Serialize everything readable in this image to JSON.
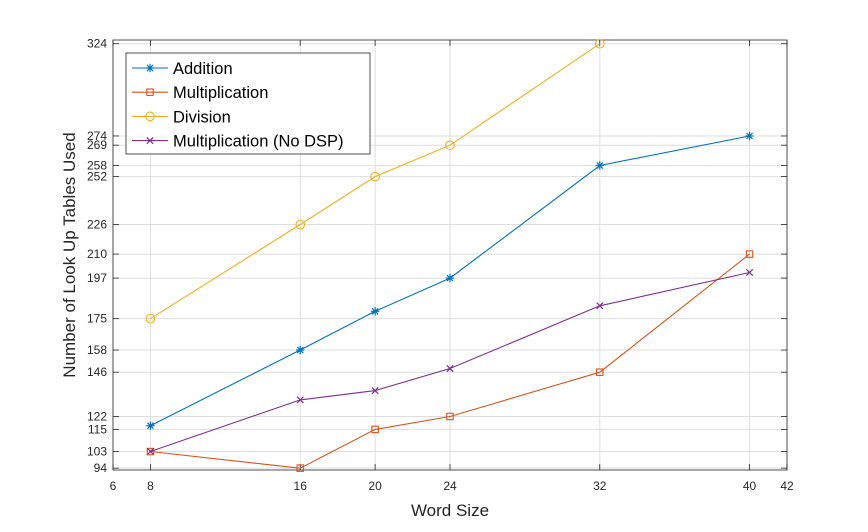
{
  "chart_data": {
    "type": "line",
    "xlabel": "Word Size",
    "ylabel": "Number of Look Up Tables Used",
    "xlim": [
      6,
      42
    ],
    "ylim": [
      93,
      326
    ],
    "x_ticks": [
      6,
      8,
      16,
      20,
      24,
      32,
      40,
      42
    ],
    "y_ticks": [
      94,
      103,
      115,
      122,
      146,
      158,
      175,
      197,
      210,
      226,
      252,
      258,
      269,
      274,
      324
    ],
    "grid": true,
    "legend_position": "top-left",
    "series": [
      {
        "name": "Addition",
        "color": "#0072BD",
        "marker": "asterisk",
        "x": [
          8,
          16,
          20,
          24,
          32,
          40
        ],
        "y": [
          117,
          158,
          179,
          197,
          258,
          274
        ]
      },
      {
        "name": "Multiplication",
        "color": "#D95319",
        "marker": "square",
        "x": [
          8,
          16,
          20,
          24,
          32,
          40
        ],
        "y": [
          103,
          94,
          115,
          122,
          146,
          210
        ]
      },
      {
        "name": "Division",
        "color": "#EDB120",
        "marker": "circle",
        "x": [
          8,
          16,
          20,
          24,
          32
        ],
        "y": [
          175,
          226,
          252,
          269,
          324
        ]
      },
      {
        "name": "Multiplication (No DSP)",
        "color": "#7E2F8E",
        "marker": "x",
        "x": [
          8,
          16,
          20,
          24,
          32,
          40
        ],
        "y": [
          103,
          131,
          136,
          148,
          182,
          200
        ]
      }
    ]
  }
}
